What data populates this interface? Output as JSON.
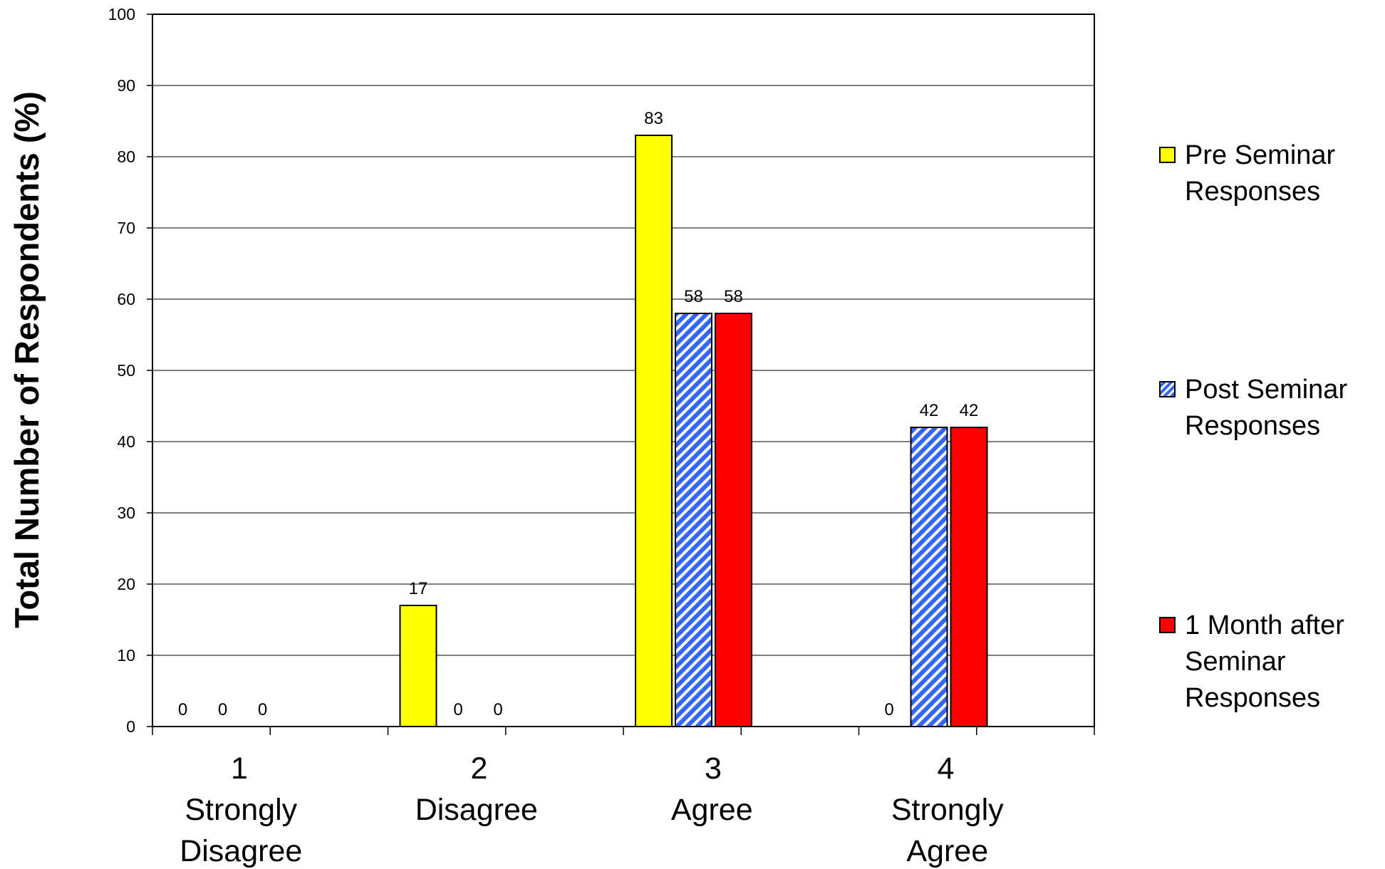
{
  "chart_data": {
    "type": "bar",
    "title": "",
    "ylabel": "Total Number of Respondents (%)",
    "xlabel": "",
    "ylim": [
      0,
      100
    ],
    "yticks": [
      0,
      10,
      20,
      30,
      40,
      50,
      60,
      70,
      80,
      90,
      100
    ],
    "grid": true,
    "legend_position": "right",
    "categories": [
      {
        "number": "1",
        "lines": [
          "Strongly",
          "Disagree"
        ]
      },
      {
        "number": "2",
        "lines": [
          "Disagree"
        ]
      },
      {
        "number": "3",
        "lines": [
          "Agree"
        ]
      },
      {
        "number": "4",
        "lines": [
          "Strongly",
          "Agree"
        ]
      }
    ],
    "series": [
      {
        "name": "Pre Seminar Responses",
        "legend_lines": [
          "Pre Seminar",
          "Responses"
        ],
        "color": "#ffff00",
        "pattern": "solid",
        "values": [
          0,
          17,
          83,
          0
        ]
      },
      {
        "name": "Post Seminar Responses",
        "legend_lines": [
          "Post Seminar",
          "Responses"
        ],
        "color": "#3366ff",
        "pattern": "diagonal-stripes",
        "values": [
          0,
          0,
          58,
          42
        ]
      },
      {
        "name": "1 Month after Seminar Responses",
        "legend_lines": [
          "1 Month after",
          "Seminar",
          "Responses"
        ],
        "color": "#ff0000",
        "pattern": "solid",
        "values": [
          0,
          0,
          58,
          42
        ]
      }
    ],
    "data_labels": [
      [
        "0",
        "17",
        "83",
        "0"
      ],
      [
        "0",
        "0",
        "58",
        "42"
      ],
      [
        "0",
        "0",
        "58",
        "42"
      ]
    ]
  }
}
